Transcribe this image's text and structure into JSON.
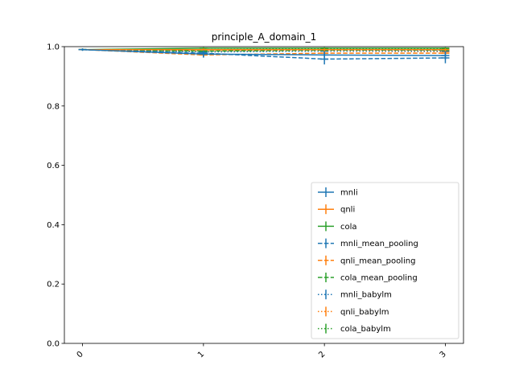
{
  "chart_data": {
    "type": "line",
    "title": "principle_A_domain_1",
    "xlabel": "",
    "ylabel": "",
    "x": [
      0,
      1,
      2,
      3
    ],
    "x_tick_labels": [
      "0",
      "1",
      "2",
      "3"
    ],
    "y_ticks": [
      0.0,
      0.2,
      0.4,
      0.6,
      0.8,
      1.0
    ],
    "y_tick_labels": [
      "0.0",
      "0.2",
      "0.4",
      "0.6",
      "0.8",
      "1.0"
    ],
    "xlim": [
      -0.15,
      3.15
    ],
    "ylim": [
      0.0,
      1.0
    ],
    "grid": false,
    "legend_position": "lower-right",
    "series": [
      {
        "name": "mnli",
        "color": "#1f77b4",
        "style": "solid",
        "values": [
          0.99,
          0.975,
          0.972,
          0.97
        ],
        "errors": [
          0.004,
          0.012,
          0.012,
          0.014
        ]
      },
      {
        "name": "qnli",
        "color": "#ff7f0e",
        "style": "solid",
        "values": [
          0.99,
          0.99,
          0.99,
          0.99
        ],
        "errors": [
          0.003,
          0.004,
          0.004,
          0.004
        ]
      },
      {
        "name": "cola",
        "color": "#2ca02c",
        "style": "solid",
        "values": [
          0.99,
          0.995,
          0.995,
          0.995
        ],
        "errors": [
          0.003,
          0.003,
          0.003,
          0.003
        ]
      },
      {
        "name": "mnli_mean_pooling",
        "color": "#1f77b4",
        "style": "dashed",
        "values": [
          0.99,
          0.978,
          0.958,
          0.962
        ],
        "errors": [
          0.004,
          0.012,
          0.018,
          0.018
        ]
      },
      {
        "name": "qnli_mean_pooling",
        "color": "#ff7f0e",
        "style": "dashed",
        "values": [
          0.99,
          0.972,
          0.978,
          0.978
        ],
        "errors": [
          0.003,
          0.008,
          0.008,
          0.008
        ]
      },
      {
        "name": "cola_mean_pooling",
        "color": "#2ca02c",
        "style": "dashed",
        "values": [
          0.99,
          0.985,
          0.988,
          0.988
        ],
        "errors": [
          0.003,
          0.004,
          0.004,
          0.004
        ]
      },
      {
        "name": "mnli_babylm",
        "color": "#1f77b4",
        "style": "dotted",
        "values": [
          0.99,
          0.982,
          0.985,
          0.985
        ],
        "errors": [
          0.003,
          0.006,
          0.006,
          0.006
        ]
      },
      {
        "name": "qnli_babylm",
        "color": "#ff7f0e",
        "style": "dotted",
        "values": [
          0.99,
          0.985,
          0.985,
          0.983
        ],
        "errors": [
          0.003,
          0.005,
          0.005,
          0.005
        ]
      },
      {
        "name": "cola_babylm",
        "color": "#2ca02c",
        "style": "dotted",
        "values": [
          0.99,
          0.99,
          0.992,
          0.992
        ],
        "errors": [
          0.003,
          0.003,
          0.003,
          0.003
        ]
      }
    ]
  }
}
